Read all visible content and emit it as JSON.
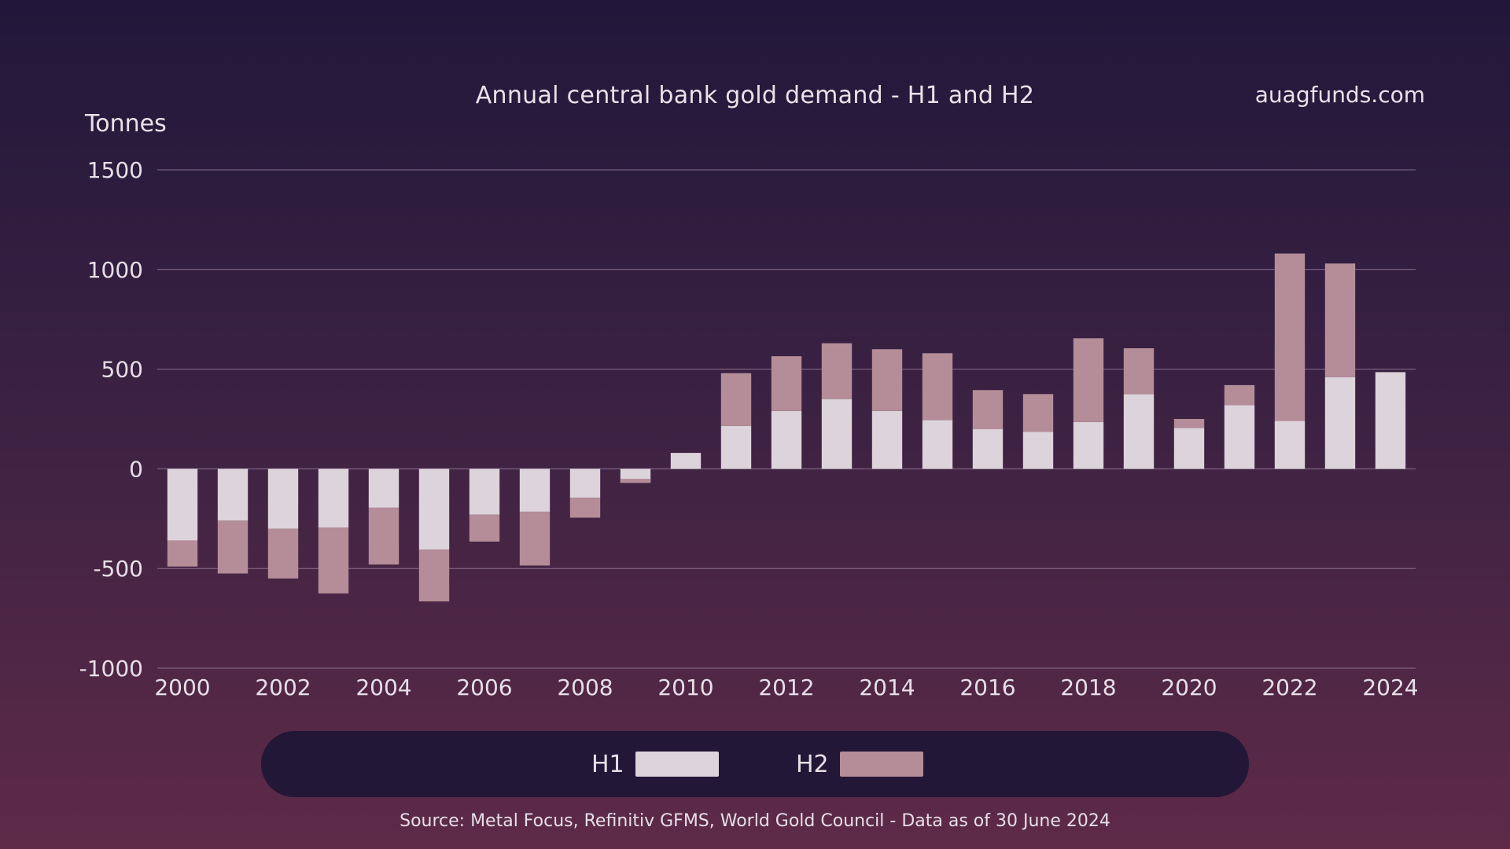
{
  "header": {
    "title": "Annual central bank gold demand - H1 and H2",
    "site": "auagfunds.com",
    "unit": "Tonnes"
  },
  "footer": {
    "source": "Source: Metal Focus, Refinitiv GFMS, World Gold Council - Data as of 30 June 2024"
  },
  "colors": {
    "h1": "#ddd3db",
    "h2": "#b48d98",
    "grid": "#8a6f8c",
    "legend_bg": "#221737"
  },
  "legend": {
    "h1_label": "H1",
    "h2_label": "H2"
  },
  "chart_data": {
    "type": "bar",
    "stacked": true,
    "title": "Annual central bank gold demand - H1 and H2",
    "ylabel": "Tonnes",
    "xlabel": "",
    "ylim": [
      -1000,
      1500
    ],
    "yticks": [
      -1000,
      -500,
      0,
      500,
      1000,
      1500
    ],
    "xticks": [
      "2000",
      "2002",
      "2004",
      "2006",
      "2008",
      "2010",
      "2012",
      "2014",
      "2016",
      "2018",
      "2020",
      "2022",
      "2024"
    ],
    "grid": true,
    "legend_position": "bottom",
    "categories": [
      "2000",
      "2001",
      "2002",
      "2003",
      "2004",
      "2005",
      "2006",
      "2007",
      "2008",
      "2009",
      "2010",
      "2011",
      "2012",
      "2013",
      "2014",
      "2015",
      "2016",
      "2017",
      "2018",
      "2019",
      "2020",
      "2021",
      "2022",
      "2023",
      "2024"
    ],
    "series": [
      {
        "name": "H1",
        "values": [
          -360,
          -260,
          -300,
          -295,
          -195,
          -405,
          -230,
          -215,
          -145,
          -70,
          80,
          215,
          290,
          350,
          290,
          245,
          200,
          185,
          235,
          375,
          205,
          320,
          240,
          460,
          485
        ]
      },
      {
        "name": "H2",
        "values": [
          -130,
          -265,
          -250,
          -330,
          -285,
          -260,
          -135,
          -270,
          -100,
          20,
          0,
          265,
          275,
          280,
          310,
          335,
          195,
          190,
          420,
          230,
          45,
          100,
          840,
          570,
          0
        ]
      }
    ]
  }
}
